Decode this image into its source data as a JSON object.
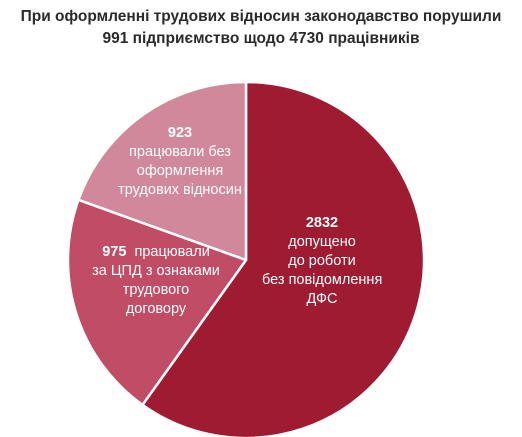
{
  "chart_data": {
    "type": "pie",
    "title_lines": [
      "При оформленні трудових відносин законодавство порушили",
      "991 підприємство щодо 4730 працівників"
    ],
    "slices": [
      {
        "value": 2832,
        "value_label": "2832",
        "text_lines": [
          "допущено",
          "до роботи",
          "без повідомлення",
          "ДФС"
        ],
        "color": "#9e1b32"
      },
      {
        "value": 975,
        "value_label": "975",
        "text_lines": [
          "працювали",
          "за ЦПД з ознаками",
          "трудового",
          "договору"
        ],
        "color": "#c04c65"
      },
      {
        "value": 923,
        "value_label": "923",
        "text_lines": [
          "працювали без",
          "оформлення",
          "трудових відносин"
        ],
        "color": "#d1889a"
      }
    ]
  }
}
